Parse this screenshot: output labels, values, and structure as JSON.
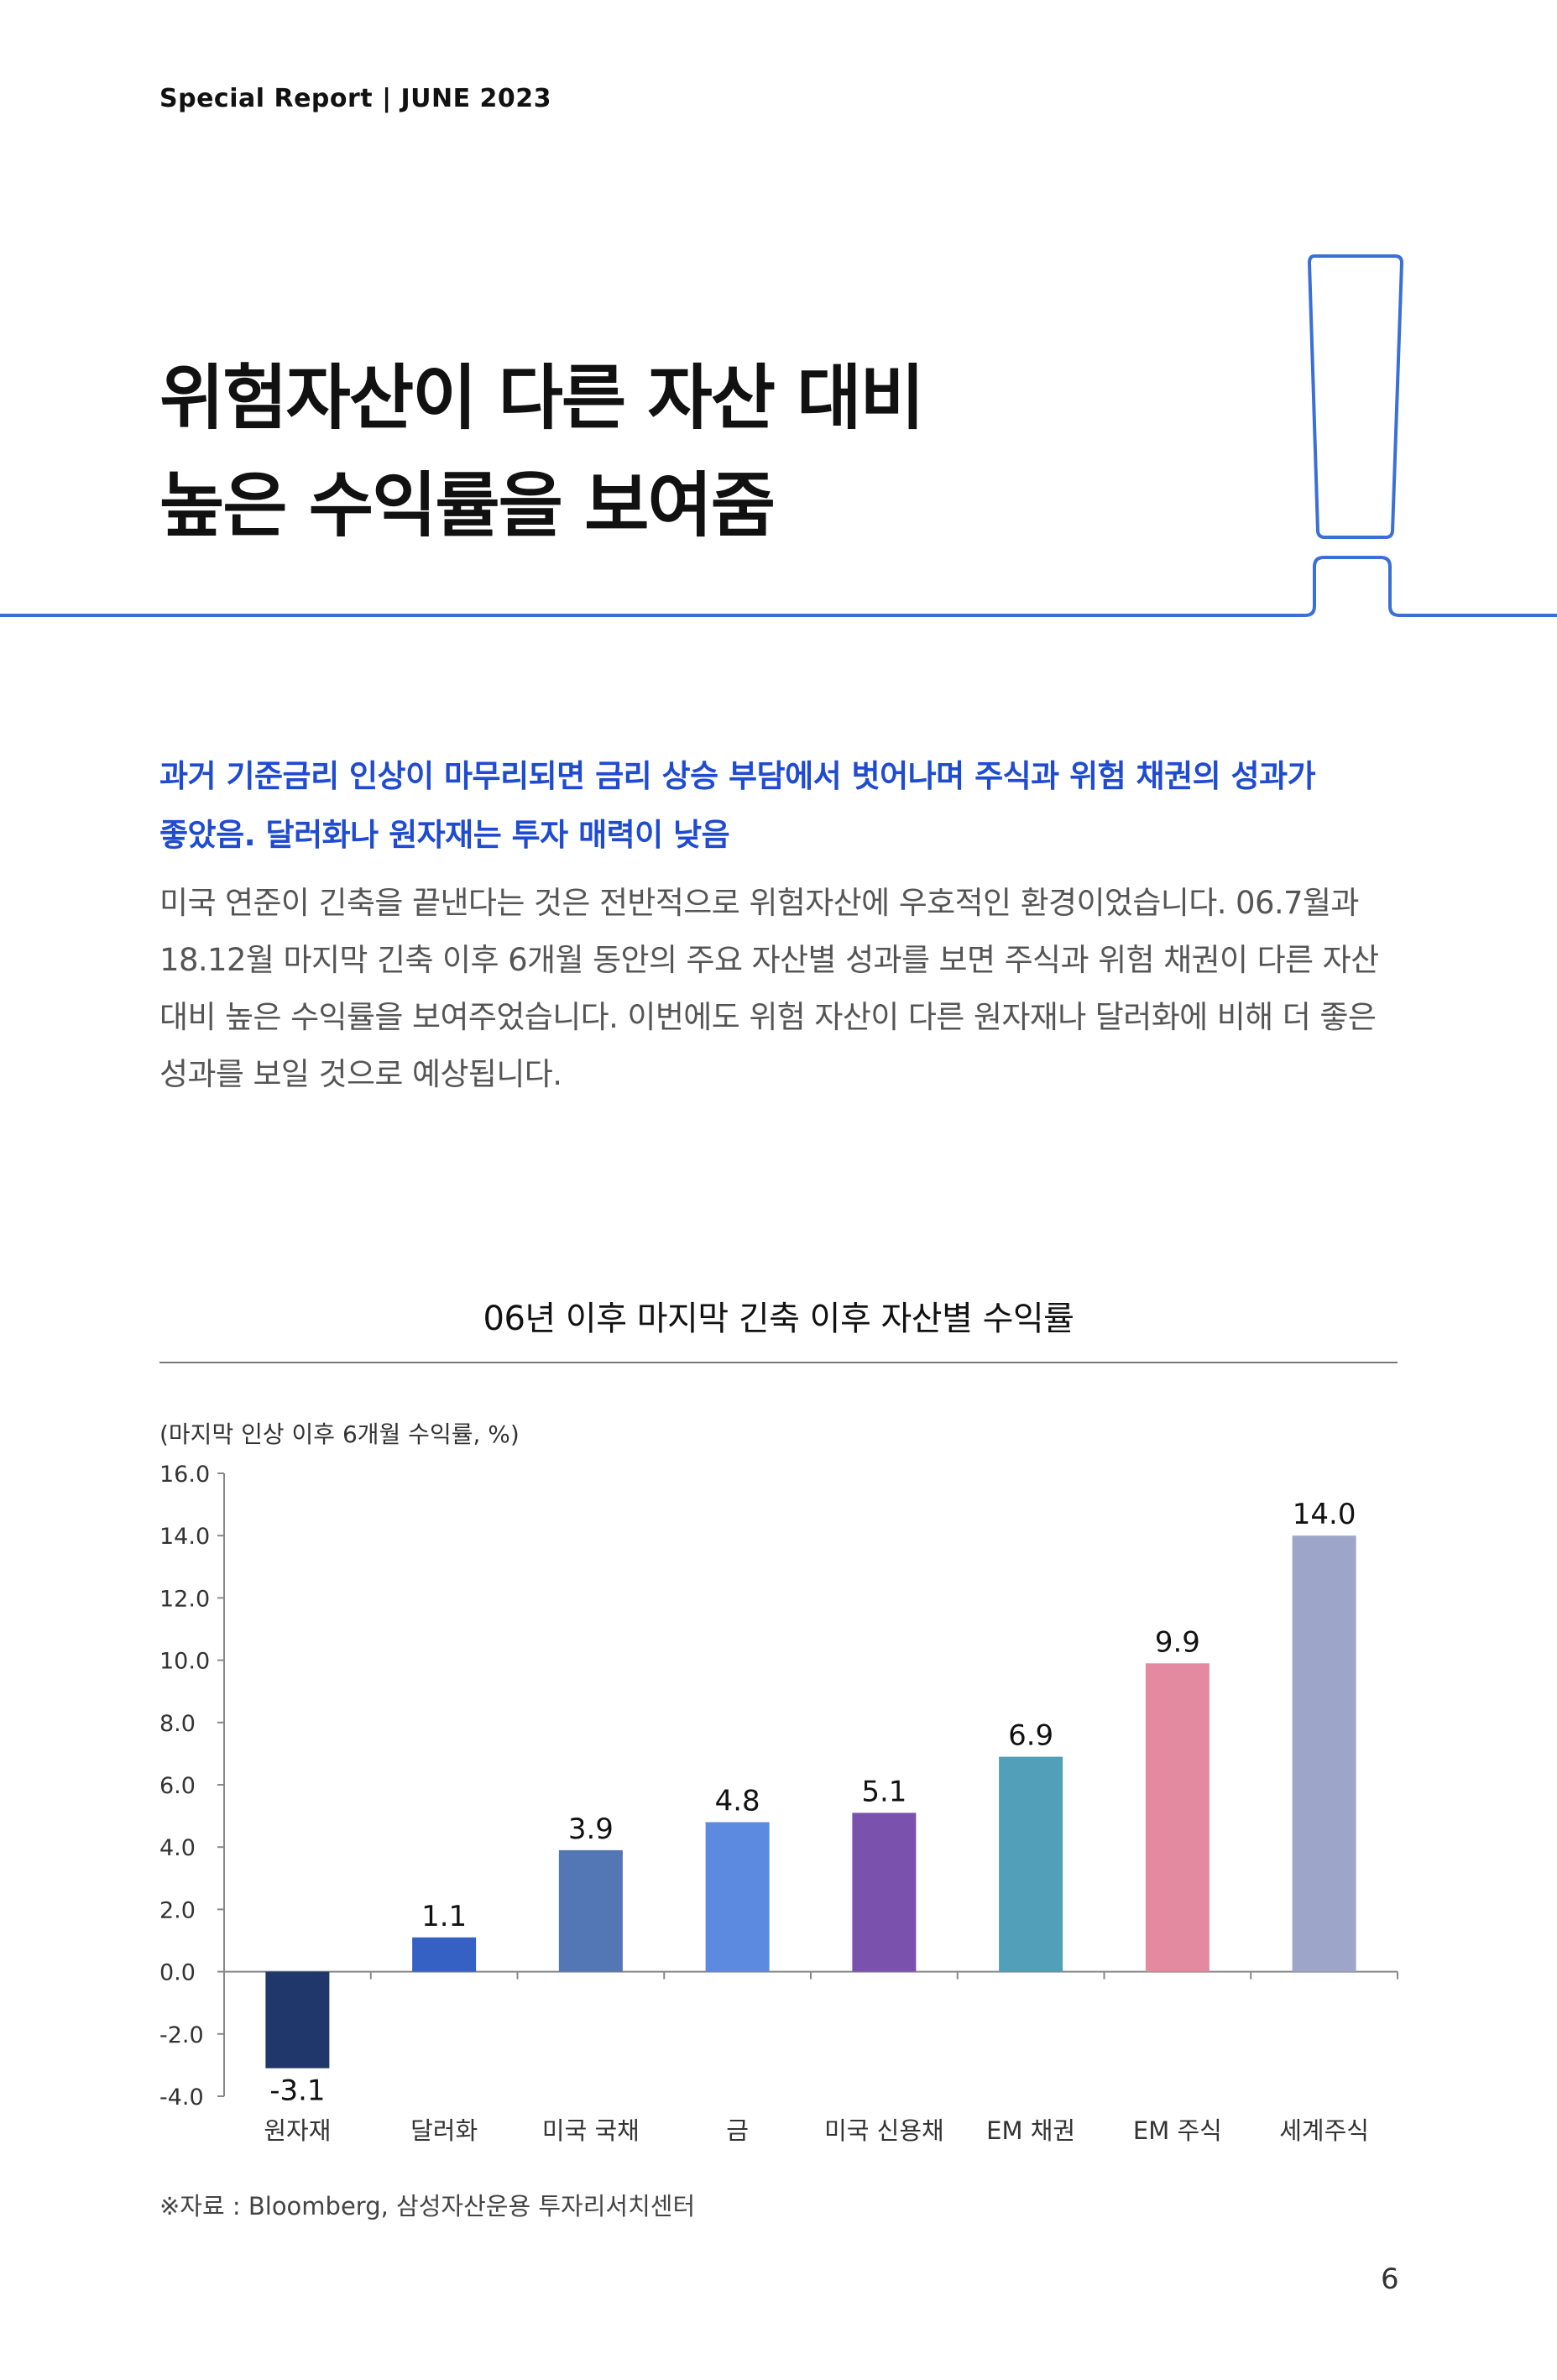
{
  "header": {
    "label": "Special Report | JUNE 2023"
  },
  "title": {
    "line1": "위험자산이 다른 자산 대비",
    "line2": "높은 수익률을 보여줌"
  },
  "lead": {
    "line1": "과거 기준금리 인상이 마무리되면 금리 상승 부담에서 벗어나며 주식과 위험 채권의 성과가",
    "line2": "좋았음. 달러화나 원자재는 투자 매력이 낮음"
  },
  "body": {
    "line1": "미국 연준이 긴축을 끝낸다는 것은 전반적으로 위험자산에 우호적인 환경이었습니다. 06.7월과",
    "line2": "18.12월 마지막 긴축 이후 6개월 동안의 주요 자산별 성과를 보면 주식과 위험 채권이 다른 자산",
    "line3": "대비 높은 수익률을 보여주었습니다. 이번에도 위험 자산이 다른 원자재나 달러화에 비해 더 좋은",
    "line4": "성과를 보일 것으로 예상됩니다."
  },
  "chart_data": {
    "type": "bar",
    "title": "06년 이후 마지막 긴축 이후 자산별 수익률",
    "ylabel": "(마지막 인상 이후 6개월 수익률, %)",
    "categories": [
      "원자재",
      "달러화",
      "미국 국채",
      "금",
      "미국 신용채",
      "EM 채권",
      "EM 주식",
      "세계주식"
    ],
    "values": [
      -3.1,
      1.1,
      3.9,
      4.8,
      5.1,
      6.9,
      9.9,
      14.0
    ],
    "value_labels": [
      "-3.1",
      "1.1",
      "3.9",
      "4.8",
      "5.1",
      "6.9",
      "9.9",
      "14.0"
    ],
    "colors": [
      "#20376b",
      "#3560c4",
      "#5376b4",
      "#5b8ae0",
      "#7a52ad",
      "#519fb8",
      "#e48aa0",
      "#9da6c8"
    ],
    "yticks": [
      "16.0",
      "14.0",
      "12.0",
      "10.0",
      "8.0",
      "6.0",
      "4.0",
      "2.0",
      "0.0",
      "-2.0",
      "-4.0"
    ],
    "ylim": [
      -4,
      16
    ],
    "grid": false
  },
  "source": "※자료 : Bloomberg, 삼성자산운용 투자리서치센터",
  "page_number": "6",
  "colors": {
    "accent": "#3a6fd8",
    "lead": "#1f4bd0"
  }
}
